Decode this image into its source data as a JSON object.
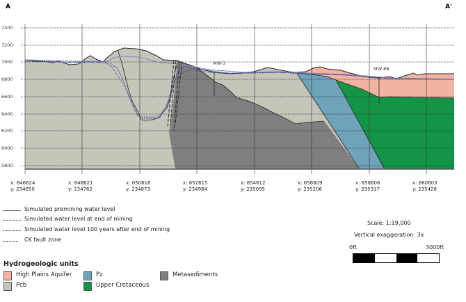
{
  "section": {
    "start_label": "A",
    "end_label": "A'"
  },
  "elevation_ticks": [
    "7400",
    "7200",
    "7000",
    "6800",
    "6600",
    "6400",
    "6200",
    "6000",
    "5800"
  ],
  "coords": [
    {
      "x": "x: 646624",
      "y": "y: 234650"
    },
    {
      "x": "x: 648621",
      "y": "y: 234762"
    },
    {
      "x": "x: 650618",
      "y": "y: 234873"
    },
    {
      "x": "x: 652615",
      "y": "y: 234984"
    },
    {
      "x": "x: 654612",
      "y": "y: 235095"
    },
    {
      "x": "x: 656609",
      "y": "y: 235206"
    },
    {
      "x": "x: 658606",
      "y": "y: 235317"
    },
    {
      "x": "x: 660603",
      "y": "y: 235428"
    }
  ],
  "wells": [
    "MW-3",
    "MW-8B"
  ],
  "line_legend": [
    {
      "label": "Simulated premining water level",
      "style": "solid",
      "color": "#7a86b8"
    },
    {
      "label": "Simulated water level at end of mining",
      "style": "dashed",
      "color": "#4a55a0"
    },
    {
      "label": "Simulated water level 100 years after end of mining",
      "style": "dotted",
      "color": "#2a3580"
    },
    {
      "label": "CK fault zone",
      "style": "long-dash",
      "color": "#333333"
    }
  ],
  "scale": {
    "text": "Scale: 1:19,000",
    "exaggeration": "Vertical exaggeration: 3x",
    "left": "0ft",
    "right": "3000ft"
  },
  "units": {
    "title": "Hydrogeologic units",
    "items": [
      {
        "label": "High Plains Aquifer",
        "color": "#f2b3a2"
      },
      {
        "label": "Pcb",
        "color": "#c6c5ba"
      },
      {
        "label": "Pz",
        "color": "#6ea3ba"
      },
      {
        "label": "Upper Cretaceous",
        "color": "#139447"
      },
      {
        "label": "Metasediments",
        "color": "#7f7f7f"
      }
    ]
  }
}
